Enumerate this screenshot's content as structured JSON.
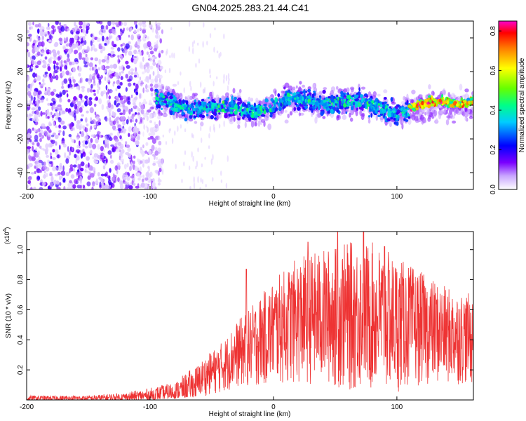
{
  "title": "GN04.2025.283.21.44.C41",
  "chart_data": [
    {
      "type": "heatmap",
      "title": "GN04.2025.283.21.44.C41",
      "xlabel": "Height of straight line (km)",
      "ylabel": "Frequency (Hz)",
      "xlim": [
        -200,
        162
      ],
      "ylim": [
        -50,
        50
      ],
      "xticks": [
        -200,
        -100,
        0,
        100
      ],
      "xtick_labels": [
        "-200",
        "-100",
        "0",
        "100"
      ],
      "yticks": [
        -40,
        -20,
        0,
        20,
        40
      ],
      "ytick_labels": [
        "-40",
        "-20",
        "0",
        "20",
        "40"
      ],
      "colorbar": {
        "label": "Normalized spectral amplitude",
        "range": [
          0,
          0.85
        ],
        "ticks": [
          0,
          0.2,
          0.4,
          0.6,
          0.8
        ],
        "tick_labels": [
          "0.0",
          "0.2",
          "0.4",
          "0.6",
          "0.8"
        ],
        "colormap": [
          "#ffffff",
          "#7a00ff",
          "#0000ff",
          "#00ffff",
          "#00ff00",
          "#ffff00",
          "#ff8000",
          "#ff0000",
          "#ff00ff"
        ]
      },
      "description_regions": [
        {
          "x_range": [
            -200,
            -95
          ],
          "freq_spread": [
            -50,
            50
          ],
          "amplitude": [
            0.02,
            0.1
          ]
        },
        {
          "x_range": [
            -95,
            160
          ],
          "freq_center": 0,
          "freq_halfwidth": 10,
          "amplitude": [
            0.1,
            0.6
          ]
        },
        {
          "x_range": [
            110,
            160
          ],
          "freq_center": 2,
          "freq_halfwidth": 5,
          "amplitude": [
            0.6,
            0.85
          ]
        }
      ]
    },
    {
      "type": "line",
      "xlabel": "Height of straight line (km)",
      "ylabel": "SNR (10 * v/v)",
      "y_multiplier_label": "(x10",
      "y_multiplier_exp": "4",
      "y_multiplier_close": ")",
      "xlim": [
        -200,
        162
      ],
      "ylim": [
        0,
        1.12
      ],
      "xticks": [
        -200,
        -100,
        0,
        100
      ],
      "xtick_labels": [
        "-200",
        "-100",
        "0",
        "100"
      ],
      "yticks": [
        0.2,
        0.4,
        0.6,
        0.8,
        1.0
      ],
      "ytick_labels": [
        "0.2",
        "0.4",
        "0.6",
        "0.8",
        "1.0"
      ],
      "color": "#ee3333",
      "series": [
        {
          "name": "SNR",
          "envelope_x": [
            -200,
            -150,
            -120,
            -100,
            -80,
            -60,
            -40,
            -30,
            -20,
            0,
            20,
            40,
            60,
            80,
            100,
            120,
            140,
            162
          ],
          "envelope_upper": [
            0.03,
            0.03,
            0.05,
            0.08,
            0.12,
            0.25,
            0.4,
            0.52,
            0.6,
            0.8,
            0.95,
            1.0,
            1.05,
            1.05,
            0.95,
            0.85,
            0.75,
            0.7
          ],
          "envelope_lower": [
            0.0,
            0.0,
            0.0,
            0.0,
            0.01,
            0.02,
            0.05,
            0.08,
            0.08,
            0.1,
            0.1,
            0.1,
            0.05,
            0.05,
            0.05,
            0.1,
            0.1,
            0.1
          ],
          "peaks": [
            {
              "x": -22,
              "y": 0.87
            },
            {
              "x": 28,
              "y": 1.05
            },
            {
              "x": 52,
              "y": 1.12
            },
            {
              "x": 73,
              "y": 1.12
            },
            {
              "x": 90,
              "y": 1.02
            }
          ]
        }
      ]
    }
  ]
}
